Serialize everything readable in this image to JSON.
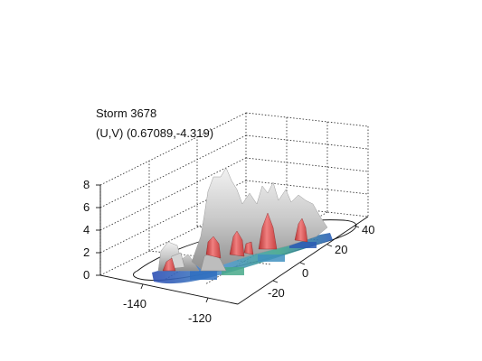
{
  "figure": {
    "title": "Storm 3678",
    "uv_label": "(U,V) (0.67089,-4.319)"
  },
  "axes": {
    "z_ticks": [
      "8",
      "6",
      "4",
      "2",
      "0"
    ],
    "x_ticks": [
      "-140",
      "-120"
    ],
    "y_ticks": [
      "40",
      "20",
      "0",
      "-20"
    ]
  },
  "colors": {
    "grid": "#222222",
    "isosurface_outer": "#c8c8c8",
    "isosurface_core": "#e24848",
    "base_low": "#3a66c8",
    "base_mid": "#3f9f8a"
  }
}
